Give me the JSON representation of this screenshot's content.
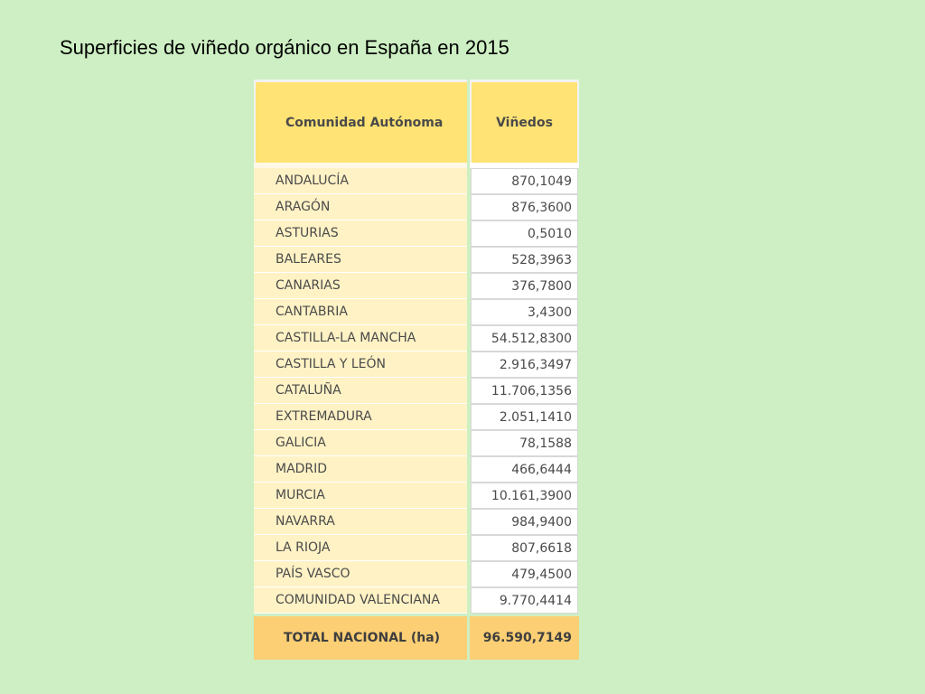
{
  "title": "Superficies de viñedo orgánico en España en 2015",
  "table": {
    "headers": {
      "region": "Comunidad Autónoma",
      "vineyards": "Viñedos"
    },
    "rows": [
      {
        "region": "ANDALUCÍA",
        "value": "870,1049"
      },
      {
        "region": "ARAGÓN",
        "value": "876,3600"
      },
      {
        "region": "ASTURIAS",
        "value": "0,5010"
      },
      {
        "region": "BALEARES",
        "value": "528,3963"
      },
      {
        "region": "CANARIAS",
        "value": "376,7800"
      },
      {
        "region": "CANTABRIA",
        "value": "3,4300"
      },
      {
        "region": "CASTILLA-LA MANCHA",
        "value": "54.512,8300"
      },
      {
        "region": "CASTILLA Y LEÓN",
        "value": "2.916,3497"
      },
      {
        "region": "CATALUÑA",
        "value": "11.706,1356"
      },
      {
        "region": "EXTREMADURA",
        "value": "2.051,1410"
      },
      {
        "region": "GALICIA",
        "value": "78,1588"
      },
      {
        "region": "MADRID",
        "value": "466,6444"
      },
      {
        "region": "MURCIA",
        "value": "10.161,3900"
      },
      {
        "region": "NAVARRA",
        "value": "984,9400"
      },
      {
        "region": "LA RIOJA",
        "value": "807,6618"
      },
      {
        "region": "PAÍS VASCO",
        "value": "479,4500"
      },
      {
        "region": "COMUNIDAD VALENCIANA",
        "value": "9.770,4414"
      }
    ],
    "total": {
      "label": "TOTAL NACIONAL (ha)",
      "value": "96.590,7149"
    }
  },
  "colors": {
    "background": "#cdefc3",
    "header": "#ffe374",
    "row": "#fff2c5",
    "total": "#fccf75"
  }
}
